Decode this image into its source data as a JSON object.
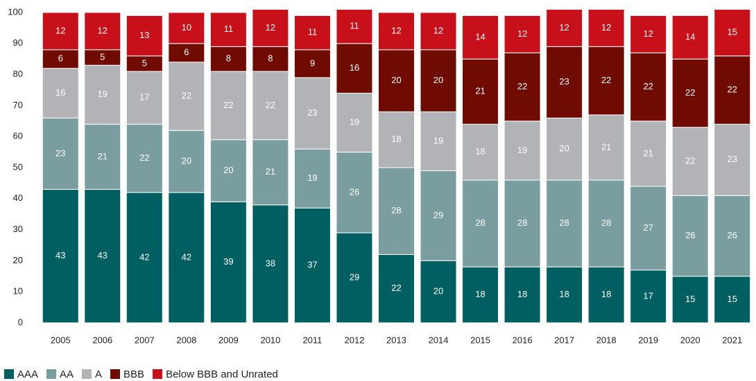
{
  "chart_data": {
    "type": "stacked_bar",
    "categories": [
      "2005",
      "2006",
      "2007",
      "2008",
      "2009",
      "2010",
      "2011",
      "2012",
      "2013",
      "2014",
      "2015",
      "2016",
      "2017",
      "2018",
      "2019",
      "2020",
      "2021"
    ],
    "series": [
      {
        "name": "AAA",
        "color": "#005f61",
        "values": [
          43,
          43,
          42,
          42,
          39,
          38,
          37,
          29,
          22,
          20,
          18,
          18,
          18,
          18,
          17,
          15,
          15
        ]
      },
      {
        "name": "AA",
        "color": "#7a9e9f",
        "values": [
          23,
          21,
          22,
          20,
          20,
          21,
          19,
          26,
          28,
          29,
          28,
          28,
          28,
          28,
          27,
          26,
          26
        ]
      },
      {
        "name": "A",
        "color": "#b2b3b6",
        "values": [
          16,
          19,
          17,
          22,
          22,
          22,
          23,
          19,
          18,
          19,
          18,
          19,
          20,
          21,
          21,
          22,
          23
        ]
      },
      {
        "name": "BBB",
        "color": "#6f0b00",
        "values": [
          6,
          5,
          5,
          6,
          8,
          8,
          9,
          16,
          20,
          20,
          21,
          22,
          23,
          22,
          22,
          22,
          22
        ]
      },
      {
        "name": "Below BBB and Unrated",
        "color": "#c8101a",
        "values": [
          12,
          12,
          13,
          10,
          11,
          12,
          11,
          11,
          12,
          12,
          14,
          12,
          12,
          12,
          12,
          14,
          15
        ]
      }
    ],
    "ylim": [
      0,
      100
    ],
    "yticks": [
      0,
      10,
      20,
      30,
      40,
      50,
      60,
      70,
      80,
      90,
      100
    ],
    "grid": false
  }
}
